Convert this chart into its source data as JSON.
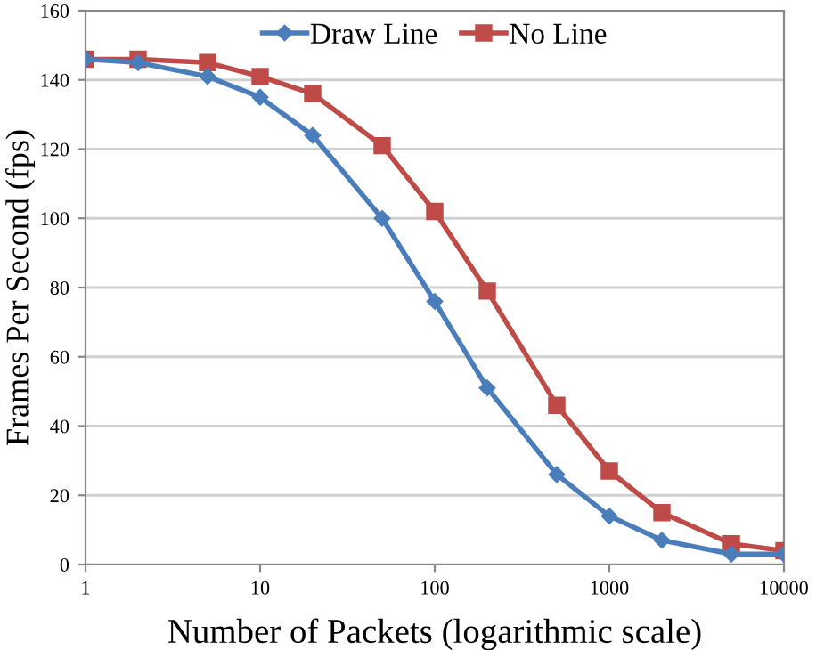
{
  "chart_data": {
    "type": "line",
    "xlabel": "Number of Packets (logarithmic scale)",
    "ylabel": "Frames Per Second (fps)",
    "x": [
      1,
      2,
      5,
      10,
      20,
      50,
      100,
      200,
      500,
      1000,
      2000,
      5000,
      10000
    ],
    "series": [
      {
        "name": "Draw Line",
        "color": "#4a7ebb",
        "marker": "diamond",
        "values": [
          146,
          145,
          141,
          135,
          124,
          100,
          76,
          51,
          26,
          14,
          7,
          3,
          3
        ]
      },
      {
        "name": "No Line",
        "color": "#be4b48",
        "marker": "square",
        "values": [
          146,
          146,
          145,
          141,
          136,
          121,
          102,
          79,
          46,
          27,
          15,
          6,
          4
        ]
      }
    ],
    "log": "x",
    "xlim": [
      1,
      10000
    ],
    "xticks": [
      1,
      10,
      100,
      1000,
      10000
    ],
    "ylim": [
      0,
      160
    ],
    "yticks": [
      0,
      20,
      40,
      60,
      80,
      100,
      120,
      140,
      160
    ],
    "grid": "y",
    "legend": "top",
    "line_style": "solid"
  }
}
